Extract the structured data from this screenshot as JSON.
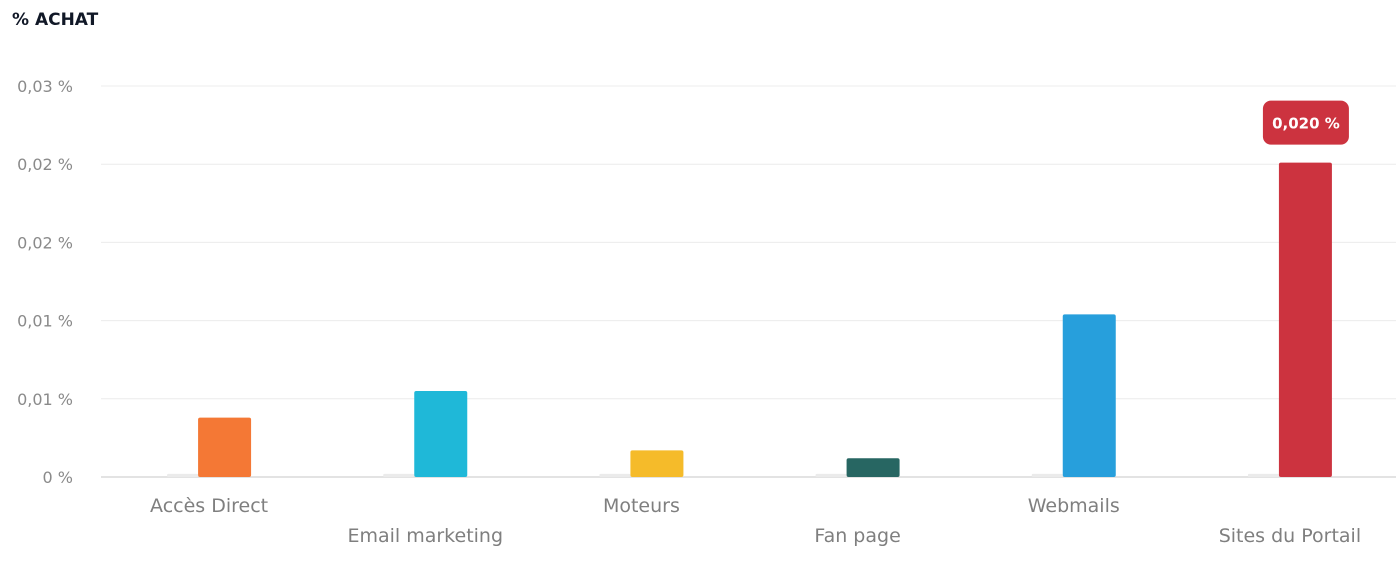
{
  "chart_data": {
    "type": "bar",
    "title": "% ACHAT",
    "categories": [
      "Accès Direct",
      "Email marketing",
      "Moteurs",
      "Fan page",
      "Webmails",
      "Sites du Portail"
    ],
    "series": [
      {
        "values": [
          0.0002,
          0.0002,
          0.0002,
          0.0002,
          0.0002,
          0.0002
        ],
        "color": "#ebebeb"
      },
      {
        "values": [
          0.0038,
          0.0055,
          0.0017,
          0.0012,
          0.0104,
          0.0201
        ],
        "colors": [
          "#f47835",
          "#1fb8d8",
          "#f5bb2a",
          "#276662",
          "#279fdc",
          "#cc333f"
        ]
      }
    ],
    "yticks": [
      0,
      0.005,
      0.01,
      0.015,
      0.02,
      0.025
    ],
    "ytick_labels": [
      "0 %",
      "0,01 %",
      "0,01 %",
      "0,02 %",
      "0,02 %",
      "0,03 %"
    ],
    "ylim": [
      0,
      0.025
    ],
    "grid": true,
    "tooltip": {
      "category": "Sites du Portail",
      "label": "0,020 %",
      "color": "#cc333f"
    }
  }
}
